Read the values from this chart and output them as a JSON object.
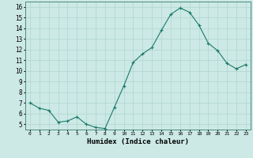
{
  "x": [
    0,
    1,
    2,
    3,
    4,
    5,
    6,
    7,
    8,
    9,
    10,
    11,
    12,
    13,
    14,
    15,
    16,
    17,
    18,
    19,
    20,
    21,
    22,
    23
  ],
  "y": [
    7.0,
    6.5,
    6.3,
    5.2,
    5.3,
    5.7,
    5.0,
    4.7,
    4.6,
    6.6,
    8.6,
    10.8,
    11.6,
    12.2,
    13.8,
    15.3,
    15.9,
    15.5,
    14.3,
    12.6,
    11.9,
    10.7,
    10.2,
    10.6
  ],
  "line_color": "#1a7a6a",
  "marker": "+",
  "marker_size": 3,
  "bg_color": "#cce9e5",
  "grid_color": "#b0d4cf",
  "xlabel": "Humidex (Indice chaleur)",
  "xlim": [
    -0.5,
    23.5
  ],
  "ylim": [
    4.5,
    16.5
  ],
  "yticks": [
    5,
    6,
    7,
    8,
    9,
    10,
    11,
    12,
    13,
    14,
    15,
    16
  ],
  "xtick_labels": [
    "0",
    "1",
    "2",
    "3",
    "4",
    "5",
    "6",
    "7",
    "8",
    "9",
    "10",
    "11",
    "12",
    "13",
    "14",
    "15",
    "16",
    "17",
    "18",
    "19",
    "20",
    "21",
    "22",
    "23"
  ]
}
